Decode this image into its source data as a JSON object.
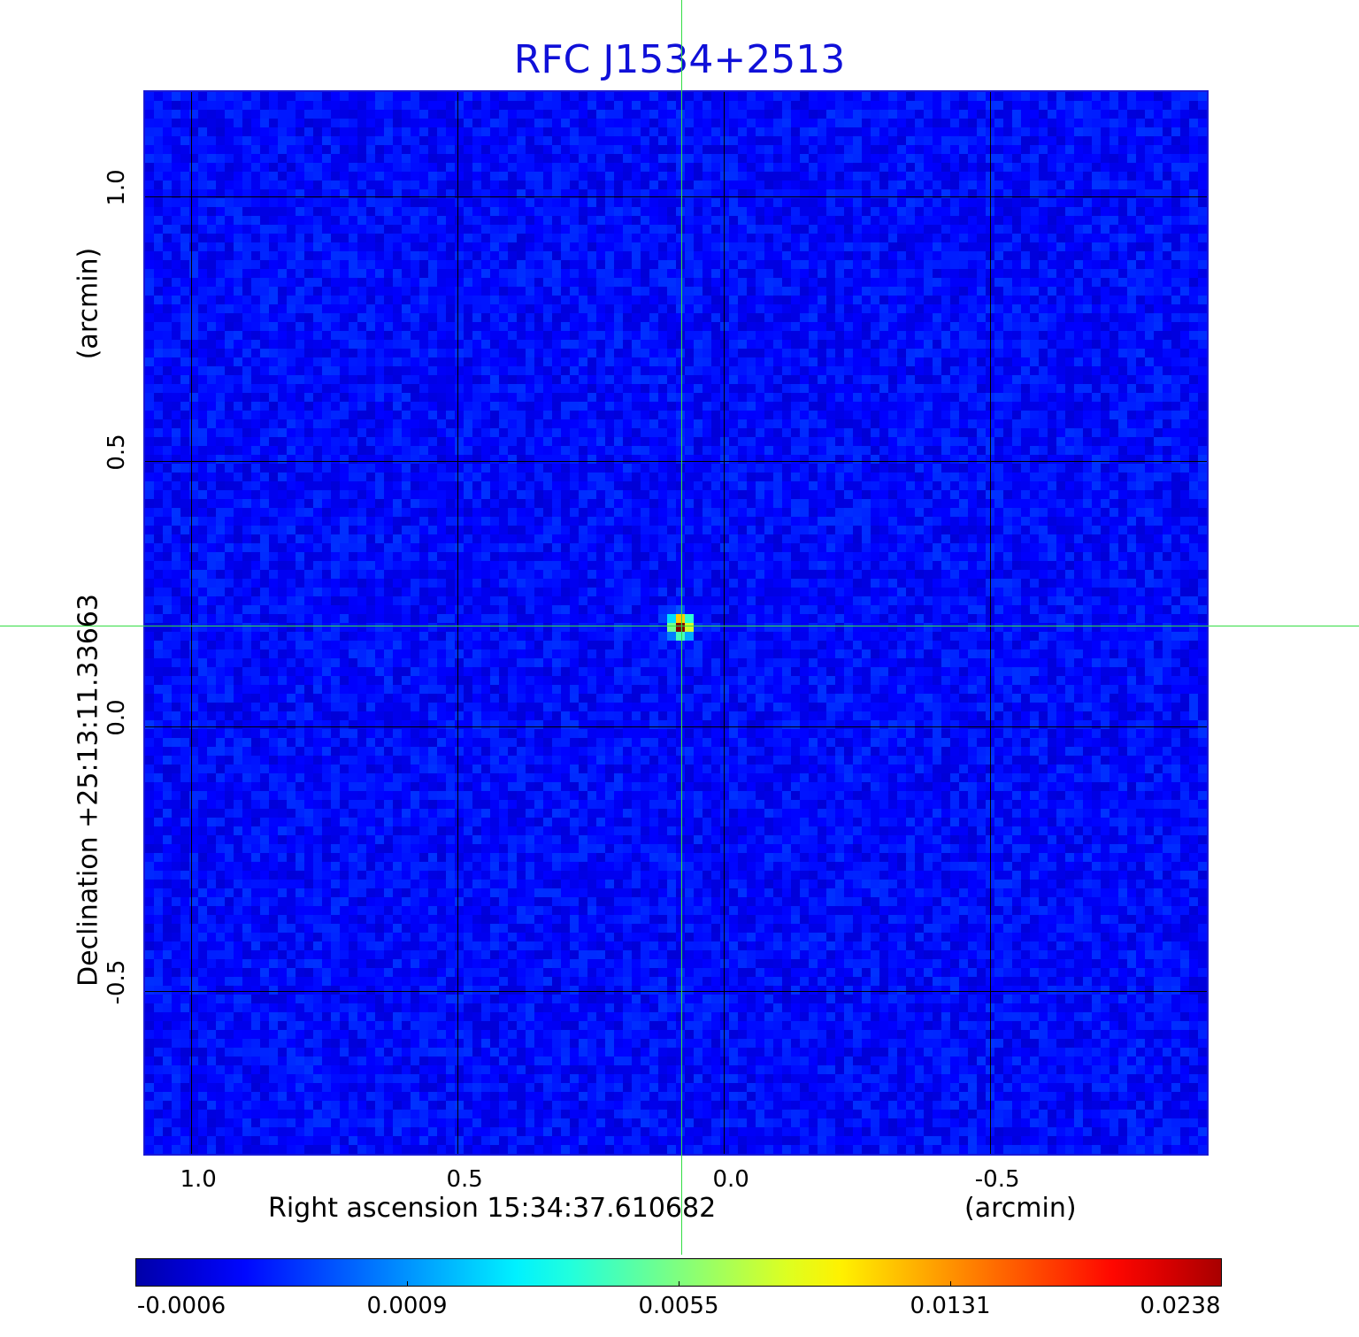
{
  "chart_data": {
    "type": "heatmap",
    "title": "RFC J1534+2513",
    "xlabel": "Right ascension  15:34:37.610682",
    "xunit": "(arcmin)",
    "ylabel": "Declination  +25:13:11.33663",
    "yunit": "(arcmin)",
    "xlim": [
      1.09,
      -0.91
    ],
    "ylim": [
      -0.81,
      1.2
    ],
    "x_ticks": [
      1.0,
      0.5,
      0.0,
      -0.5
    ],
    "x_tick_labels": [
      "1.0",
      "0.5",
      "0.0",
      "-0.5"
    ],
    "y_ticks": [
      1.0,
      0.5,
      0.0,
      -0.5
    ],
    "y_tick_labels": [
      "1.0",
      "0.5",
      "0.0",
      "-0.5"
    ],
    "grid": true,
    "source_peak": {
      "x": 0.08,
      "y": 0.19,
      "value": 0.0238
    },
    "crosshair": {
      "x": 0.08,
      "y": 0.19
    },
    "colorbar": {
      "colormap": "jet",
      "range": [
        -0.0006,
        0.0238
      ],
      "ticks": [
        "-0.0006",
        "0.0009",
        "0.0055",
        "0.0131",
        "0.0238"
      ]
    }
  },
  "colors": {
    "title": "#1010d8",
    "frame": "#1a1ad6",
    "crosshair": "#33dd44",
    "grid": "#000000"
  }
}
